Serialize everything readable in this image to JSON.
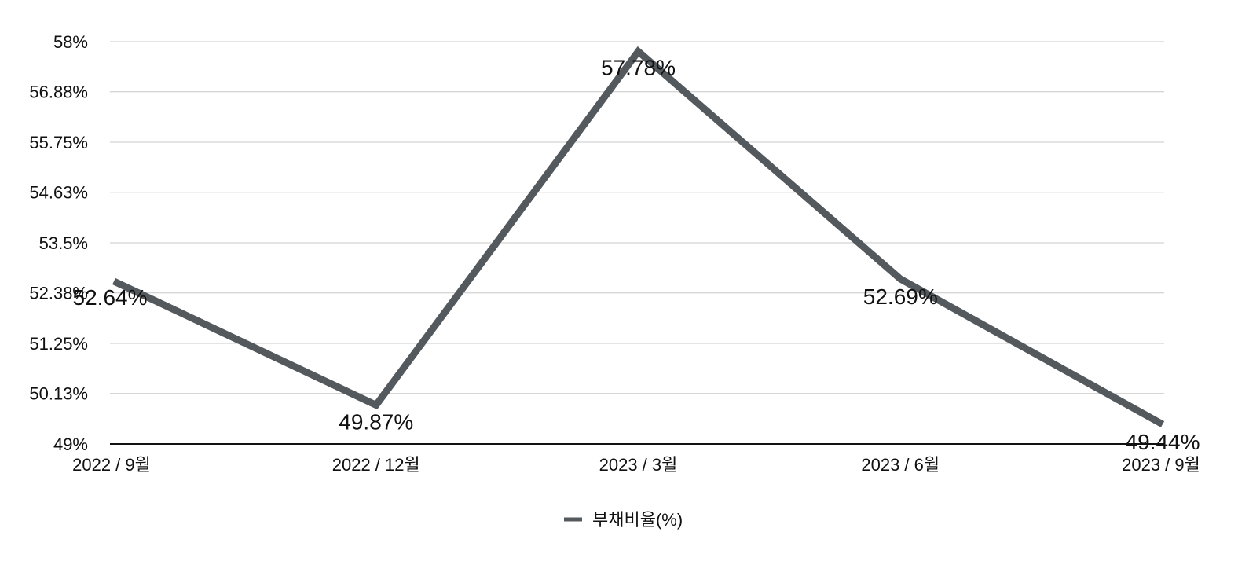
{
  "chart_data": {
    "type": "line",
    "categories": [
      "2022 / 9월",
      "2022 / 12월",
      "2023 / 3월",
      "2023 / 6월",
      "2023 / 9월"
    ],
    "series": [
      {
        "name": "부채비율(%)",
        "values": [
          52.64,
          49.87,
          57.78,
          52.69,
          49.44
        ],
        "labels": [
          "52.64%",
          "49.87%",
          "57.78%",
          "52.69%",
          "49.44%"
        ]
      }
    ],
    "ylim": [
      49,
      58
    ],
    "yticks": [
      "58%",
      "56.88%",
      "55.75%",
      "54.63%",
      "53.5%",
      "52.38%",
      "51.25%",
      "50.13%",
      "49%"
    ],
    "ytick_values": [
      58,
      56.88,
      55.75,
      54.63,
      53.5,
      52.38,
      51.25,
      50.13,
      49
    ],
    "grid": true,
    "legend": "bottom-center",
    "colors": {
      "line": "#54595e",
      "grid": "#c8c8c8",
      "axis": "#111111"
    }
  }
}
